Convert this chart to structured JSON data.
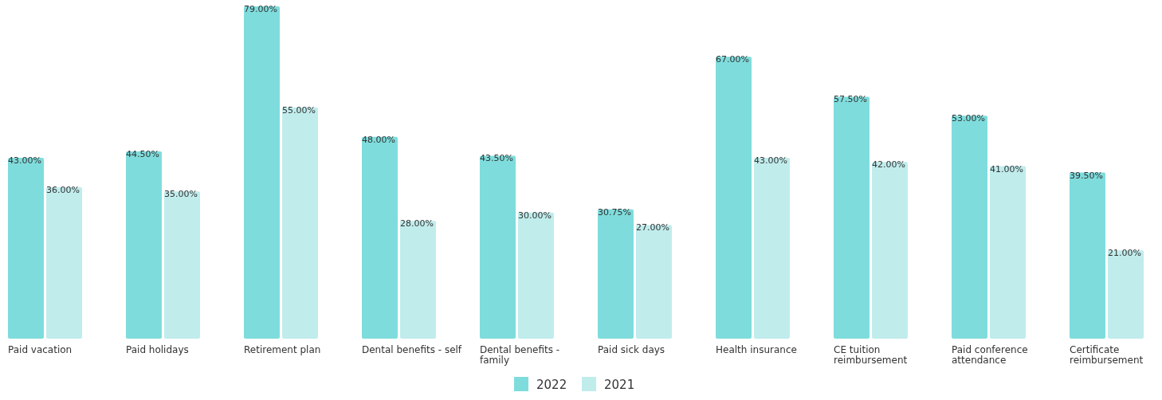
{
  "chart_data": {
    "type": "bar",
    "categories": [
      "Paid vacation",
      "Paid holidays",
      "Retirement plan",
      "Dental benefits - self",
      "Dental benefits - family",
      "Paid sick days",
      "Health insurance",
      "CE tuition reimbursement",
      "Paid conference attendance",
      "Certificate reimbursement"
    ],
    "series": [
      {
        "name": "2022",
        "color": "#7fdcdc",
        "values": [
          43,
          44.5,
          79,
          48,
          43.5,
          30.75,
          67,
          57.5,
          53,
          39.5
        ],
        "value_labels": [
          "43.00%",
          "44.50%",
          "79.00%",
          "48.00%",
          "43.50%",
          "30.75%",
          "67.00%",
          "57.50%",
          "53.00%",
          "39.50%"
        ]
      },
      {
        "name": "2021",
        "color": "#c0ecec",
        "values": [
          36,
          35,
          55,
          28,
          30,
          27,
          43,
          42,
          41,
          21
        ],
        "value_labels": [
          "36.00%",
          "35.00%",
          "55.00%",
          "28.00%",
          "30.00%",
          "27.00%",
          "43.00%",
          "42.00%",
          "41.00%",
          "21.00%"
        ]
      }
    ],
    "legend": "bottom",
    "grid": false
  }
}
